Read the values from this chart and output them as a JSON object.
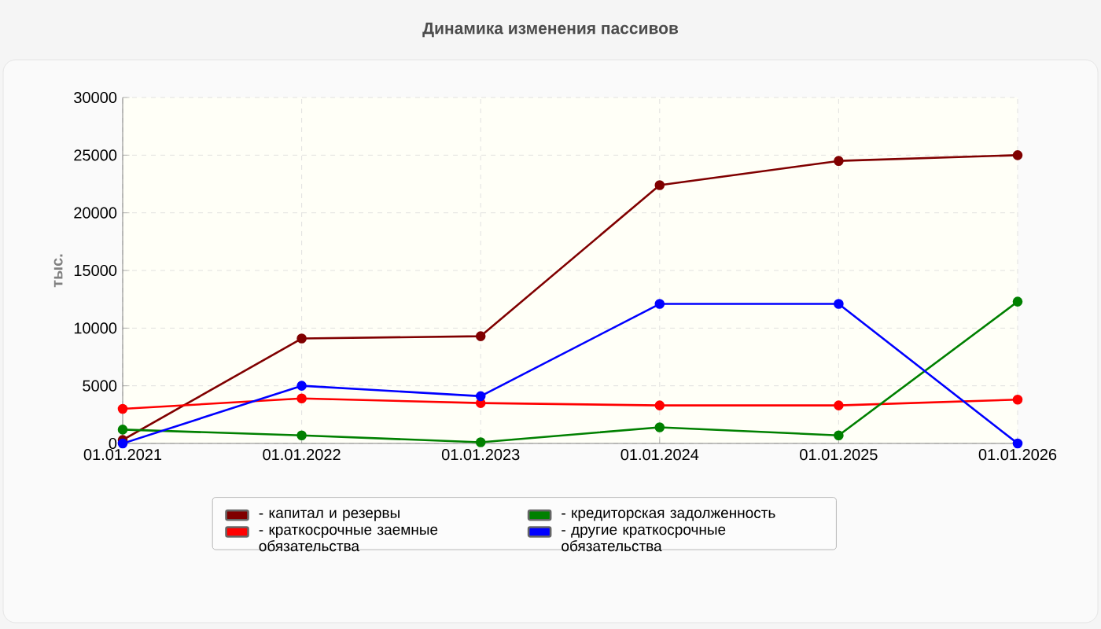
{
  "chart_data": {
    "type": "line",
    "title": "Динамика изменения пассивов",
    "ylabel": "тыс.",
    "categories": [
      "01.01.2021",
      "01.01.2022",
      "01.01.2023",
      "01.01.2024",
      "01.01.2025",
      "01.01.2026"
    ],
    "series": [
      {
        "name": "- капитал и резервы",
        "color": "#800000",
        "values": [
          300,
          9100,
          9300,
          22400,
          24500,
          25000
        ]
      },
      {
        "name": "- краткосрочные заемные обязательства",
        "color": "#ff0000",
        "values": [
          3000,
          3900,
          3500,
          3300,
          3300,
          3800
        ]
      },
      {
        "name": "- кредиторская задолженность",
        "color": "#008000",
        "values": [
          1200,
          700,
          100,
          1400,
          700,
          12300
        ]
      },
      {
        "name": "- другие краткосрочные обязательства",
        "color": "#0000ff",
        "values": [
          0,
          5000,
          4100,
          12100,
          12100,
          0
        ]
      }
    ],
    "ylim": [
      0,
      30000
    ],
    "yticks": [
      0,
      5000,
      10000,
      15000,
      20000,
      25000,
      30000
    ],
    "grid": true,
    "legend": "bottom",
    "marker": "circle",
    "line_style": "solid"
  }
}
